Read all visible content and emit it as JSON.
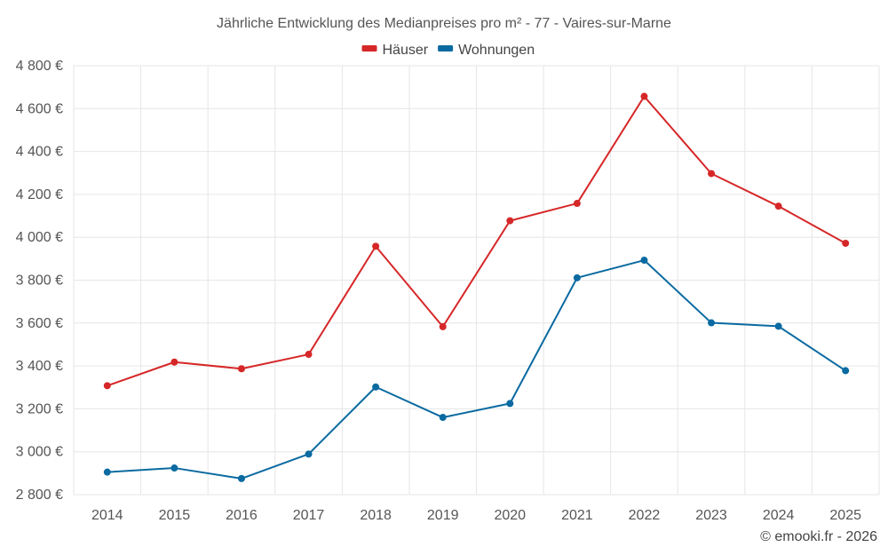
{
  "chart_data": {
    "type": "line",
    "title": "Jährliche Entwicklung des Medianpreises pro m² - 77 - Vaires-sur-Marne",
    "categories": [
      "2014",
      "2015",
      "2016",
      "2017",
      "2018",
      "2019",
      "2020",
      "2021",
      "2022",
      "2023",
      "2024",
      "2025"
    ],
    "series": [
      {
        "name": "Häuser",
        "color": "#d62728",
        "values": [
          3308,
          3418,
          3387,
          3454,
          3958,
          3583,
          4077,
          4158,
          4657,
          4297,
          4145,
          3972
        ]
      },
      {
        "name": "Wohnungen",
        "color": "#0a6aa1",
        "values": [
          2905,
          2924,
          2875,
          2989,
          3302,
          3160,
          3225,
          3811,
          3893,
          3601,
          3585,
          3378
        ]
      }
    ],
    "ylim": [
      2800,
      4800
    ],
    "yticks": [
      2800,
      3000,
      3200,
      3400,
      3600,
      3800,
      4000,
      4200,
      4400,
      4600,
      4800
    ],
    "ytick_labels": [
      "2 800 €",
      "3 000 €",
      "3 200 €",
      "3 400 €",
      "3 600 €",
      "3 800 €",
      "4 000 €",
      "4 200 €",
      "4 400 €",
      "4 600 €",
      "4 800 €"
    ],
    "xlabel": "",
    "ylabel": "",
    "legend_position": "top-center",
    "grid": true
  },
  "credit": "© emooki.fr - 2026"
}
